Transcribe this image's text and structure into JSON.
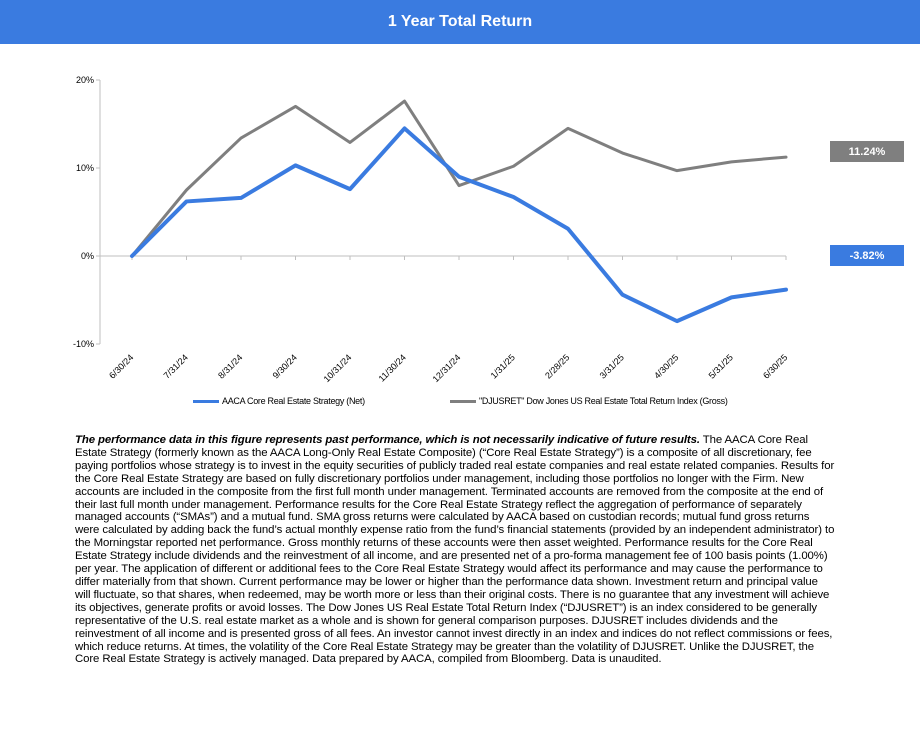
{
  "header": {
    "title": "1 Year Total Return"
  },
  "colors": {
    "header_bg": "#3a7be0",
    "series_net": "#3a7be0",
    "series_index": "#7f7f7f"
  },
  "chart_data": {
    "type": "line",
    "title": "1 Year Total Return",
    "xlabel": "",
    "ylabel": "",
    "categories": [
      "6/30/24",
      "7/31/24",
      "8/31/24",
      "9/30/24",
      "10/31/24",
      "11/30/24",
      "12/31/24",
      "1/31/25",
      "2/28/25",
      "3/31/25",
      "4/30/25",
      "5/31/25",
      "6/30/25"
    ],
    "ylim": [
      -10,
      20
    ],
    "yticks": [
      -10,
      0,
      10,
      20
    ],
    "ytick_labels": [
      "-10%",
      "0%",
      "10%",
      "20%"
    ],
    "grid": false,
    "legend_position": "bottom",
    "series": [
      {
        "name": "AACA Core Real Estate Strategy (Net)",
        "color": "#3a7be0",
        "values": [
          0,
          6.2,
          6.6,
          10.3,
          7.6,
          14.5,
          9.0,
          6.7,
          3.1,
          -4.4,
          -7.4,
          -4.7,
          -3.82
        ],
        "end_label": "-3.82%"
      },
      {
        "name": "\"DJUSRET\" Dow Jones US Real Estate Total Return Index (Gross)",
        "color": "#7f7f7f",
        "values": [
          0,
          7.5,
          13.4,
          17.0,
          12.9,
          17.6,
          8.0,
          10.2,
          14.5,
          11.7,
          9.7,
          10.7,
          11.24
        ],
        "end_label": "11.24%"
      }
    ]
  },
  "disclaimer": {
    "lead": "The performance data in this figure represents past performance, which is not necessarily indicative of future results.",
    "body": " The AACA Core Real Estate Strategy (formerly known as the AACA Long-Only Real Estate Composite) (“Core Real Estate Strategy”) is a composite of all discretionary, fee paying portfolios whose strategy is to invest in the equity securities of publicly traded real estate companies and real estate related companies. Results for the Core Real Estate Strategy are based on fully discretionary portfolios under management, including those portfolios no longer with the Firm. New accounts are included in the composite from the first full month under management. Terminated accounts are removed from the composite at the end of their last full month under management. Performance results for the Core Real Estate Strategy reflect the aggregation of performance of separately managed accounts (“SMAs”) and a mutual fund. SMA gross returns were calculated by AACA based on custodian records; mutual fund gross returns were calculated by adding back the fund’s actual monthly expense ratio from the fund’s financial statements (provided by an independent administrator) to the Morningstar reported net performance. Gross monthly returns of these accounts were then asset weighted. Performance results for the Core Real Estate Strategy include dividends and the reinvestment of all income, and are presented net of a pro-forma management fee of 100 basis points (1.00%) per year. The application of different or additional fees to the Core Real Estate Strategy would affect its performance and may cause the performance to differ materially from that shown. Current performance may be lower or higher than the performance data shown. Investment return and principal value will fluctuate, so that shares, when redeemed, may be worth more or less than their original costs. There is no guarantee that any investment will achieve its objectives, generate profits or avoid losses. The Dow Jones US Real Estate Total Return Index (“DJUSRET”) is an index considered to be generally representative of the U.S. real estate market as a whole and is shown for general comparison purposes. DJUSRET includes dividends and the reinvestment of all income and is presented gross of all fees. An investor cannot invest directly in an index and indices do not reflect commissions or fees, which reduce returns. At times, the volatility of the Core Real Estate Strategy may be greater than the volatility of DJUSRET. Unlike the DJUSRET, the Core Real Estate Strategy is actively managed. Data prepared by AACA, compiled from Bloomberg. Data is unaudited."
  }
}
